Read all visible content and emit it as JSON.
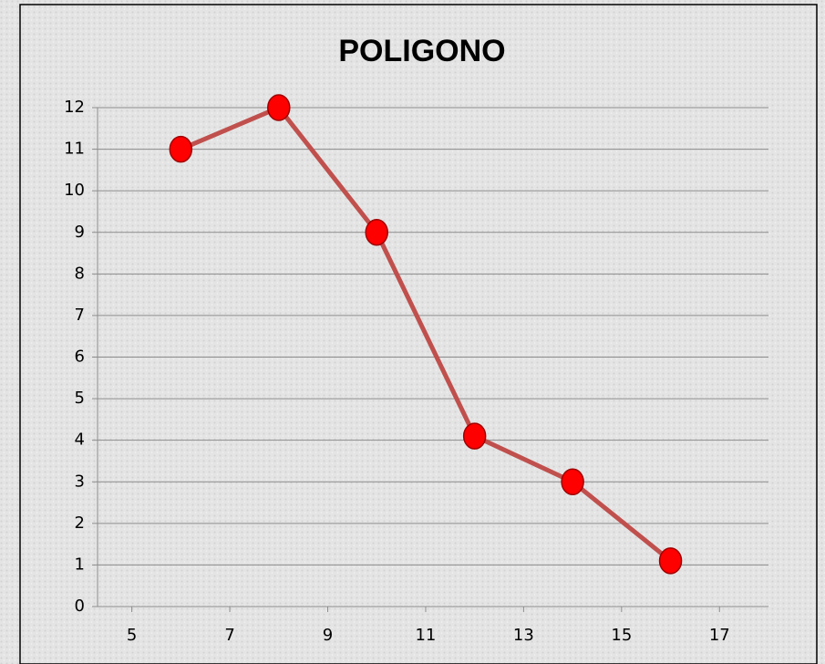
{
  "chart_data": {
    "type": "line",
    "title": "POLIGONO",
    "x": [
      6,
      8,
      10,
      12,
      14,
      16
    ],
    "series": [
      {
        "color": "#c0504d",
        "marker_color": "#ff0000",
        "values": [
          11,
          12,
          9,
          4.1,
          3,
          1.1
        ]
      }
    ],
    "xlim": [
      4.3,
      18
    ],
    "xticks": [
      5,
      7,
      9,
      11,
      13,
      15,
      17
    ],
    "ylim": [
      0,
      12
    ],
    "yticks": [
      0,
      1,
      2,
      3,
      4,
      5,
      6,
      7,
      8,
      9,
      10,
      11,
      12
    ],
    "grid": true
  }
}
